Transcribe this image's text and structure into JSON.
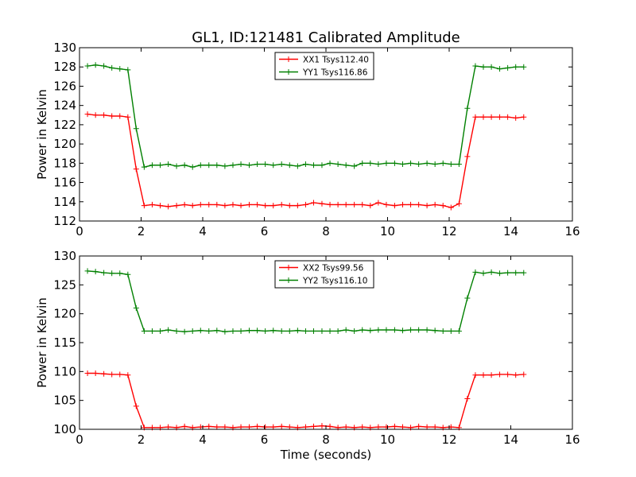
{
  "figure": {
    "title": "GL1, ID:121481 Calibrated Amplitude",
    "xlabel": "Time (seconds)"
  },
  "chart_data": [
    {
      "type": "line",
      "title": "GL1, ID:121481 Calibrated Amplitude",
      "xlabel": "",
      "ylabel": "Power in Kelvin",
      "xlim": [
        0,
        16
      ],
      "ylim": [
        112,
        130
      ],
      "xticks": [
        0,
        2,
        4,
        6,
        8,
        10,
        12,
        14,
        16
      ],
      "yticks": [
        112,
        114,
        116,
        118,
        120,
        122,
        124,
        126,
        128,
        130
      ],
      "grid": false,
      "legend": "top-center",
      "x": [
        0.26,
        0.52,
        0.79,
        1.05,
        1.31,
        1.57,
        1.84,
        2.1,
        2.36,
        2.62,
        2.88,
        3.15,
        3.41,
        3.67,
        3.93,
        4.2,
        4.46,
        4.72,
        4.98,
        5.24,
        5.51,
        5.77,
        6.03,
        6.29,
        6.56,
        6.82,
        7.08,
        7.34,
        7.6,
        7.87,
        8.13,
        8.39,
        8.65,
        8.92,
        9.18,
        9.44,
        9.7,
        9.96,
        10.23,
        10.49,
        10.75,
        11.01,
        11.28,
        11.54,
        11.8,
        12.06,
        12.32,
        12.59,
        12.85,
        13.11,
        13.37,
        13.64,
        13.9,
        14.16,
        14.42
      ],
      "series": [
        {
          "name": "XX1 Tsys112.40",
          "color": "#ff0000",
          "values": [
            123.1,
            123.0,
            123.0,
            122.9,
            122.9,
            122.8,
            117.4,
            113.6,
            113.7,
            113.6,
            113.5,
            113.6,
            113.7,
            113.6,
            113.7,
            113.7,
            113.7,
            113.6,
            113.7,
            113.6,
            113.7,
            113.7,
            113.6,
            113.6,
            113.7,
            113.6,
            113.6,
            113.7,
            113.9,
            113.8,
            113.7,
            113.7,
            113.7,
            113.7,
            113.7,
            113.6,
            113.9,
            113.7,
            113.6,
            113.7,
            113.7,
            113.7,
            113.6,
            113.7,
            113.6,
            113.4,
            113.8,
            118.7,
            122.8,
            122.8,
            122.8,
            122.8,
            122.8,
            122.7,
            122.8
          ]
        },
        {
          "name": "YY1 Tsys116.86",
          "color": "#008000",
          "values": [
            128.1,
            128.2,
            128.1,
            127.9,
            127.8,
            127.7,
            121.6,
            117.6,
            117.8,
            117.8,
            117.9,
            117.7,
            117.8,
            117.6,
            117.8,
            117.8,
            117.8,
            117.7,
            117.8,
            117.9,
            117.8,
            117.9,
            117.9,
            117.8,
            117.9,
            117.8,
            117.7,
            117.9,
            117.8,
            117.8,
            118.0,
            117.9,
            117.8,
            117.7,
            118.0,
            118.0,
            117.9,
            118.0,
            118.0,
            117.9,
            118.0,
            117.9,
            118.0,
            117.9,
            118.0,
            117.9,
            117.9,
            123.7,
            128.1,
            128.0,
            128.0,
            127.8,
            127.9,
            128.0,
            128.0
          ]
        }
      ]
    },
    {
      "type": "line",
      "title": "",
      "xlabel": "Time (seconds)",
      "ylabel": "Power in Kelvin",
      "xlim": [
        0,
        16
      ],
      "ylim": [
        100,
        130
      ],
      "xticks": [
        0,
        2,
        4,
        6,
        8,
        10,
        12,
        14,
        16
      ],
      "yticks": [
        100,
        105,
        110,
        115,
        120,
        125,
        130
      ],
      "grid": false,
      "legend": "top-center",
      "x": [
        0.26,
        0.52,
        0.79,
        1.05,
        1.31,
        1.57,
        1.84,
        2.1,
        2.36,
        2.62,
        2.88,
        3.15,
        3.41,
        3.67,
        3.93,
        4.2,
        4.46,
        4.72,
        4.98,
        5.24,
        5.51,
        5.77,
        6.03,
        6.29,
        6.56,
        6.82,
        7.08,
        7.34,
        7.6,
        7.87,
        8.13,
        8.39,
        8.65,
        8.92,
        9.18,
        9.44,
        9.7,
        9.96,
        10.23,
        10.49,
        10.75,
        11.01,
        11.28,
        11.54,
        11.8,
        12.06,
        12.32,
        12.59,
        12.85,
        13.11,
        13.37,
        13.64,
        13.9,
        14.16,
        14.42
      ],
      "series": [
        {
          "name": "XX2 Tsys99.56",
          "color": "#ff0000",
          "values": [
            109.7,
            109.7,
            109.6,
            109.5,
            109.5,
            109.4,
            104.0,
            100.3,
            100.3,
            100.3,
            100.4,
            100.3,
            100.5,
            100.3,
            100.4,
            100.5,
            100.4,
            100.4,
            100.3,
            100.4,
            100.4,
            100.5,
            100.4,
            100.4,
            100.5,
            100.4,
            100.3,
            100.4,
            100.5,
            100.6,
            100.5,
            100.3,
            100.4,
            100.3,
            100.4,
            100.3,
            100.4,
            100.4,
            100.5,
            100.4,
            100.3,
            100.5,
            100.4,
            100.4,
            100.3,
            100.4,
            100.3,
            105.3,
            109.4,
            109.4,
            109.4,
            109.5,
            109.5,
            109.4,
            109.5
          ]
        },
        {
          "name": "YY2 Tsys116.10",
          "color": "#008000",
          "values": [
            127.4,
            127.3,
            127.1,
            127.0,
            127.0,
            126.8,
            121.0,
            117.0,
            117.0,
            117.0,
            117.2,
            117.0,
            116.9,
            117.0,
            117.1,
            117.0,
            117.1,
            116.9,
            117.0,
            117.0,
            117.1,
            117.1,
            117.0,
            117.1,
            117.0,
            117.0,
            117.1,
            117.0,
            117.0,
            117.0,
            117.0,
            117.0,
            117.2,
            117.0,
            117.2,
            117.1,
            117.2,
            117.2,
            117.2,
            117.1,
            117.2,
            117.2,
            117.2,
            117.1,
            117.0,
            117.0,
            117.0,
            122.7,
            127.2,
            127.0,
            127.2,
            127.0,
            127.1,
            127.1,
            127.1
          ]
        }
      ]
    }
  ]
}
